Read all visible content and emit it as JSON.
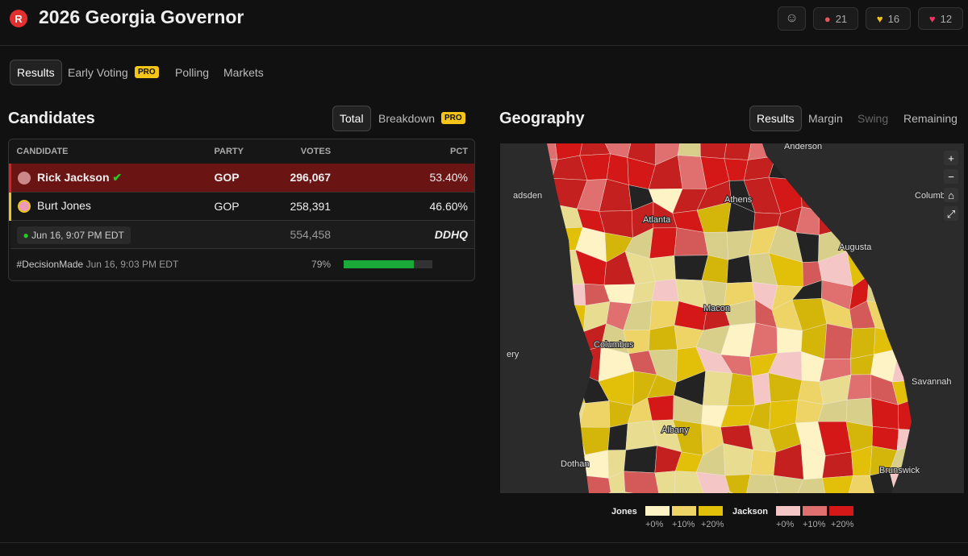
{
  "header": {
    "logo": "R",
    "title": "2026 Georgia Governor",
    "reactions": [
      "21",
      "16",
      "12"
    ]
  },
  "tabs": {
    "items": [
      "Results",
      "Early Voting",
      "Polling",
      "Markets"
    ],
    "badge": "PRO"
  },
  "candidates": {
    "title": "Candidates",
    "toggles": [
      "Total",
      "Breakdown"
    ],
    "badge": "PRO",
    "columns": [
      "CANDIDATE",
      "PARTY",
      "VOTES",
      "PCT"
    ],
    "rows": [
      {
        "name": "Rick Jackson",
        "party": "GOP",
        "votes": "296,067",
        "pct": "53.40%"
      },
      {
        "name": "Burt Jones",
        "party": "GOP",
        "votes": "258,391",
        "pct": "46.60%"
      }
    ],
    "updated": "Jun 16, 9:07 PM EDT",
    "total": "554,458",
    "source": "DDHQ",
    "decision": {
      "tag": "#DecisionMade",
      "time": "Jun 16, 9:03 PM EDT",
      "reporting": {
        "value": 79,
        "label": "79%"
      }
    }
  },
  "geography": {
    "title": "Geography",
    "toggles": [
      "Results",
      "Margin",
      "Swing",
      "Remaining"
    ],
    "cities": [
      "Anderson",
      "Athens",
      "Atlanta",
      "Columbia",
      "Augusta",
      "Macon",
      "Columbus",
      "Savannah",
      "Albany",
      "Dothan",
      "Brunswick",
      "adsden",
      "ery"
    ],
    "legend": {
      "jones": "Jones",
      "jackson": "Jackson",
      "steps": [
        "+0%",
        "+10%",
        "+20%"
      ]
    }
  }
}
